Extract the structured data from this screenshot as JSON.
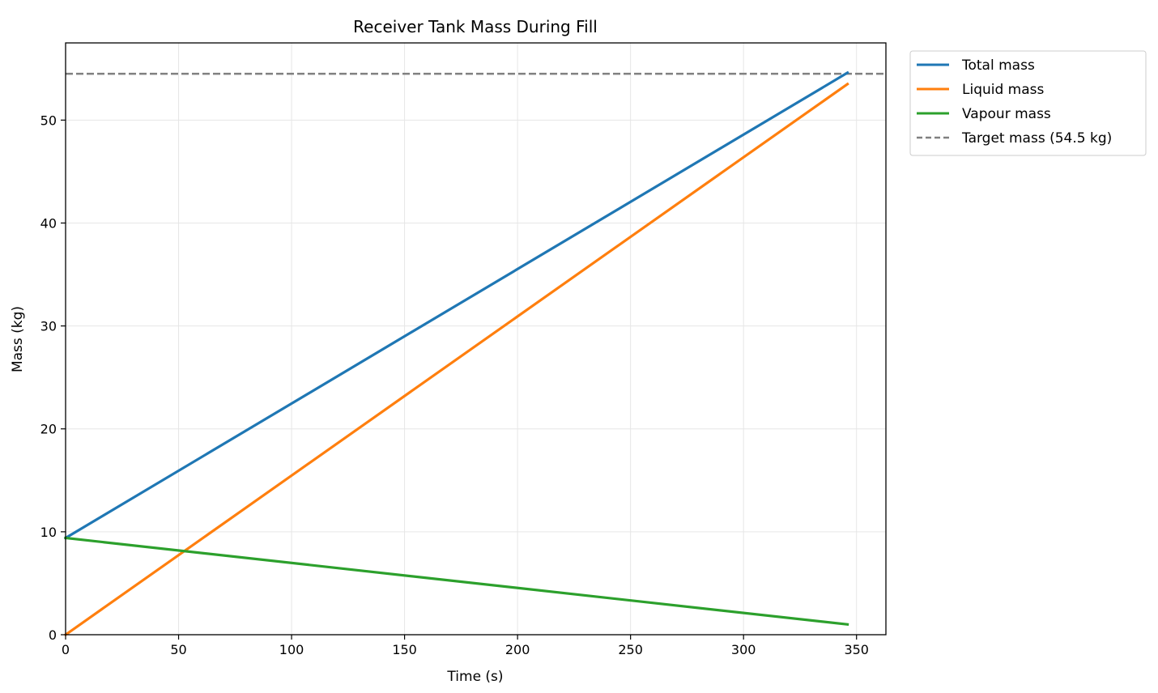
{
  "chart_data": {
    "type": "line",
    "title": "Receiver Tank Mass During Fill",
    "xlabel": "Time (s)",
    "ylabel": "Mass (kg)",
    "xlim": [
      0,
      363
    ],
    "ylim": [
      0,
      57.5
    ],
    "xticks": [
      0,
      50,
      100,
      150,
      200,
      250,
      300,
      350
    ],
    "yticks": [
      0,
      10,
      20,
      30,
      40,
      50
    ],
    "grid": true,
    "legend_position": "outside-top-right",
    "series": [
      {
        "name": "Total mass",
        "color": "#1f77b4",
        "style": "solid",
        "x": [
          0,
          346
        ],
        "y": [
          9.4,
          54.6
        ]
      },
      {
        "name": "Liquid mass",
        "color": "#ff7f0e",
        "style": "solid",
        "x": [
          0,
          346
        ],
        "y": [
          0,
          53.5
        ]
      },
      {
        "name": "Vapour mass",
        "color": "#2ca02c",
        "style": "solid",
        "x": [
          0,
          346
        ],
        "y": [
          9.4,
          1.0
        ]
      }
    ],
    "reference_lines": [
      {
        "name": "Target mass (54.5 kg)",
        "color": "#808080",
        "style": "dashed",
        "y": 54.5
      }
    ]
  }
}
